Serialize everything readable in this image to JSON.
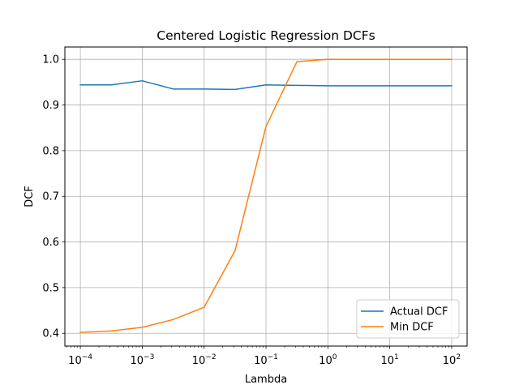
{
  "chart_data": {
    "type": "line",
    "title": "Centered Logistic Regression DCFs",
    "xlabel": "Lambda",
    "ylabel": "DCF",
    "xscale": "log",
    "xlim": [
      5.62e-05,
      177.8
    ],
    "ylim": [
      0.372,
      1.027
    ],
    "grid": true,
    "legend_position": "lower-right",
    "x": [
      0.0001,
      0.000316,
      0.001,
      0.00316,
      0.01,
      0.0316,
      0.1,
      0.316,
      1,
      3.16,
      10,
      31.6,
      100
    ],
    "x_ticks": [
      {
        "value": 0.0001,
        "base": "10",
        "exp": "−4"
      },
      {
        "value": 0.001,
        "base": "10",
        "exp": "−3"
      },
      {
        "value": 0.01,
        "base": "10",
        "exp": "−2"
      },
      {
        "value": 0.1,
        "base": "10",
        "exp": "−1"
      },
      {
        "value": 1,
        "base": "10",
        "exp": "0"
      },
      {
        "value": 10,
        "base": "10",
        "exp": "1"
      },
      {
        "value": 100,
        "base": "10",
        "exp": "2"
      }
    ],
    "y_ticks": [
      {
        "value": 0.4,
        "label": "0.4"
      },
      {
        "value": 0.5,
        "label": "0.5"
      },
      {
        "value": 0.6,
        "label": "0.6"
      },
      {
        "value": 0.7,
        "label": "0.7"
      },
      {
        "value": 0.8,
        "label": "0.8"
      },
      {
        "value": 0.9,
        "label": "0.9"
      },
      {
        "value": 1.0,
        "label": "1.0"
      }
    ],
    "series": [
      {
        "name": "Actual DCF",
        "color": "#1f77b4",
        "values": [
          0.944,
          0.944,
          0.953,
          0.935,
          0.935,
          0.934,
          0.944,
          0.943,
          0.942,
          0.942,
          0.942,
          0.942,
          0.942
        ]
      },
      {
        "name": "Min DCF",
        "color": "#ff7f0e",
        "values": [
          0.402,
          0.405,
          0.413,
          0.43,
          0.457,
          0.581,
          0.853,
          0.995,
          1.0,
          1.0,
          1.0,
          1.0,
          1.0
        ]
      }
    ]
  }
}
